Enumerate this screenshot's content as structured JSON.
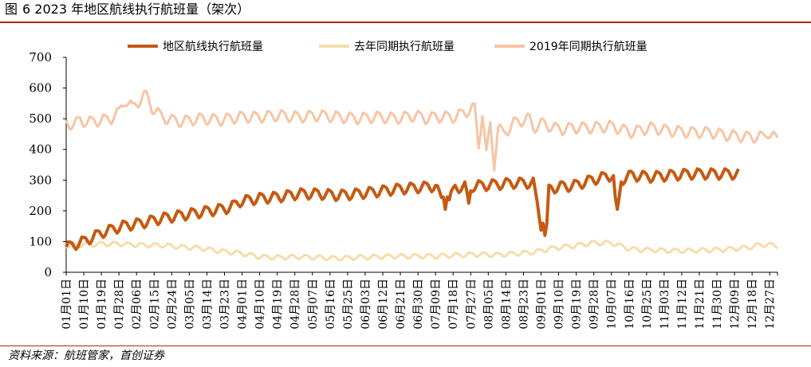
{
  "figure": {
    "label": "图",
    "number": "6",
    "title_text": "2023 年地区航线执行航班量（架次）",
    "source": "资料来源：航班管家，首创证券"
  },
  "colors": {
    "rule": "#b0241c",
    "series_2023": "#c55a11",
    "series_last_year": "#f6dca9",
    "series_2019": "#f7c4a4"
  },
  "chart_data": {
    "type": "line",
    "ylim": [
      0,
      700
    ],
    "yticks": [
      0,
      100,
      200,
      300,
      400,
      500,
      600,
      700
    ],
    "grid": false,
    "legend_position": "top",
    "x_start": "01月01日",
    "x_end": "12月31日",
    "x_tick_labels": [
      "01月01日",
      "01月10日",
      "01月19日",
      "01月28日",
      "02月06日",
      "02月15日",
      "02月24日",
      "03月05日",
      "03月14日",
      "03月23日",
      "04月01日",
      "04月10日",
      "04月19日",
      "04月28日",
      "05月07日",
      "05月16日",
      "05月25日",
      "06月03日",
      "06月12日",
      "06月21日",
      "06月30日",
      "07月09日",
      "07月18日",
      "07月27日",
      "08月05日",
      "08月14日",
      "08月23日",
      "09月01日",
      "09月10日",
      "09月19日",
      "09月28日",
      "10月07日",
      "10月16日",
      "10月25日",
      "11月03日",
      "11月12日",
      "11月21日",
      "11月30日",
      "12月09日",
      "12月18日",
      "12月27日"
    ],
    "series": [
      {
        "name": "2019年同期执行航班量",
        "color_key": "series_2019",
        "line_width": 3,
        "sample_every_days": 5,
        "days_covered": 365,
        "anchor_days": [
          1,
          5,
          8,
          12,
          16,
          20,
          24,
          28,
          31,
          35,
          38,
          40,
          42,
          45,
          50,
          55,
          60,
          70,
          80,
          90,
          100,
          110,
          120,
          130,
          140,
          150,
          160,
          170,
          180,
          185,
          190,
          200,
          210,
          212,
          214,
          216,
          218,
          220,
          222,
          225,
          230,
          238,
          240,
          245,
          250,
          255,
          260,
          270,
          280,
          290,
          300,
          310,
          320,
          330,
          340,
          350,
          358,
          360,
          365
        ],
        "anchor_values": [
          485,
          480,
          495,
          488,
          492,
          495,
          500,
          520,
          560,
          535,
          555,
          570,
          575,
          535,
          505,
          495,
          490,
          500,
          495,
          505,
          505,
          510,
          505,
          510,
          505,
          500,
          505,
          500,
          510,
          500,
          505,
          505,
          535,
          410,
          520,
          380,
          480,
          350,
          470,
          450,
          485,
          500,
          470,
          485,
          470,
          465,
          470,
          470,
          475,
          455,
          470,
          460,
          455,
          455,
          445,
          440,
          440,
          455,
          430
        ],
        "weekly_amplitude": 30
      },
      {
        "name": "去年同期执行航班量",
        "color_key": "series_last_year",
        "line_width": 3,
        "sample_every_days": 5,
        "days_covered": 365,
        "anchor_days": [
          1,
          10,
          20,
          28,
          40,
          50,
          60,
          70,
          80,
          90,
          100,
          110,
          120,
          130,
          140,
          150,
          160,
          170,
          180,
          190,
          200,
          210,
          220,
          230,
          240,
          250,
          255,
          260,
          270,
          280,
          290,
          300,
          310,
          320,
          330,
          340,
          350,
          355,
          360,
          365
        ],
        "anchor_values": [
          85,
          90,
          92,
          92,
          88,
          88,
          82,
          78,
          68,
          62,
          50,
          48,
          50,
          48,
          45,
          48,
          50,
          52,
          52,
          52,
          55,
          58,
          56,
          60,
          65,
          78,
          82,
          85,
          95,
          95,
          75,
          72,
          70,
          70,
          72,
          75,
          80,
          88,
          90,
          85
        ],
        "weekly_amplitude": 12
      },
      {
        "name": "地区航线执行航班量",
        "color_key": "series_2023",
        "line_width": 4,
        "sample_every_days": 5,
        "days_covered": 345,
        "anchor_days": [
          1,
          10,
          20,
          30,
          40,
          50,
          60,
          70,
          80,
          85,
          90,
          100,
          110,
          120,
          130,
          140,
          150,
          160,
          170,
          180,
          190,
          195,
          200,
          210,
          220,
          230,
          240,
          245,
          248,
          250,
          253,
          255,
          260,
          270,
          280,
          285,
          290,
          300,
          310,
          320,
          330,
          340,
          345
        ],
        "anchor_values": [
          80,
          100,
          130,
          150,
          160,
          175,
          185,
          195,
          205,
          210,
          230,
          240,
          245,
          255,
          255,
          250,
          255,
          262,
          270,
          275,
          280,
          205,
          275,
          280,
          285,
          290,
          290,
          120,
          270,
          275,
          275,
          280,
          280,
          300,
          315,
          300,
          315,
          310,
          315,
          320,
          320,
          320,
          320
        ],
        "dips": [
          {
            "day": 195,
            "value": 205
          },
          {
            "day": 207,
            "value": 225
          },
          {
            "day": 246,
            "value": 120
          },
          {
            "day": 283,
            "value": 205
          }
        ],
        "weekly_amplitude": 28
      }
    ]
  }
}
